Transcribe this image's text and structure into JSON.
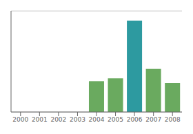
{
  "chart_data": {
    "type": "bar",
    "categories": [
      "2000",
      "2001",
      "2002",
      "2003",
      "2004",
      "2005",
      "2006",
      "2007",
      "2008"
    ],
    "values": [
      0,
      0,
      0,
      0,
      32,
      35,
      95,
      45,
      30
    ],
    "colors": [
      "#6aaa5f",
      "#6aaa5f",
      "#6aaa5f",
      "#6aaa5f",
      "#6aaa5f",
      "#6aaa5f",
      "#2d9aa0",
      "#6aaa5f",
      "#6aaa5f"
    ],
    "ylim": [
      0,
      105
    ],
    "yticks": [
      0,
      20,
      40,
      60,
      80,
      100
    ],
    "grid": true,
    "tick_labels": "x"
  }
}
